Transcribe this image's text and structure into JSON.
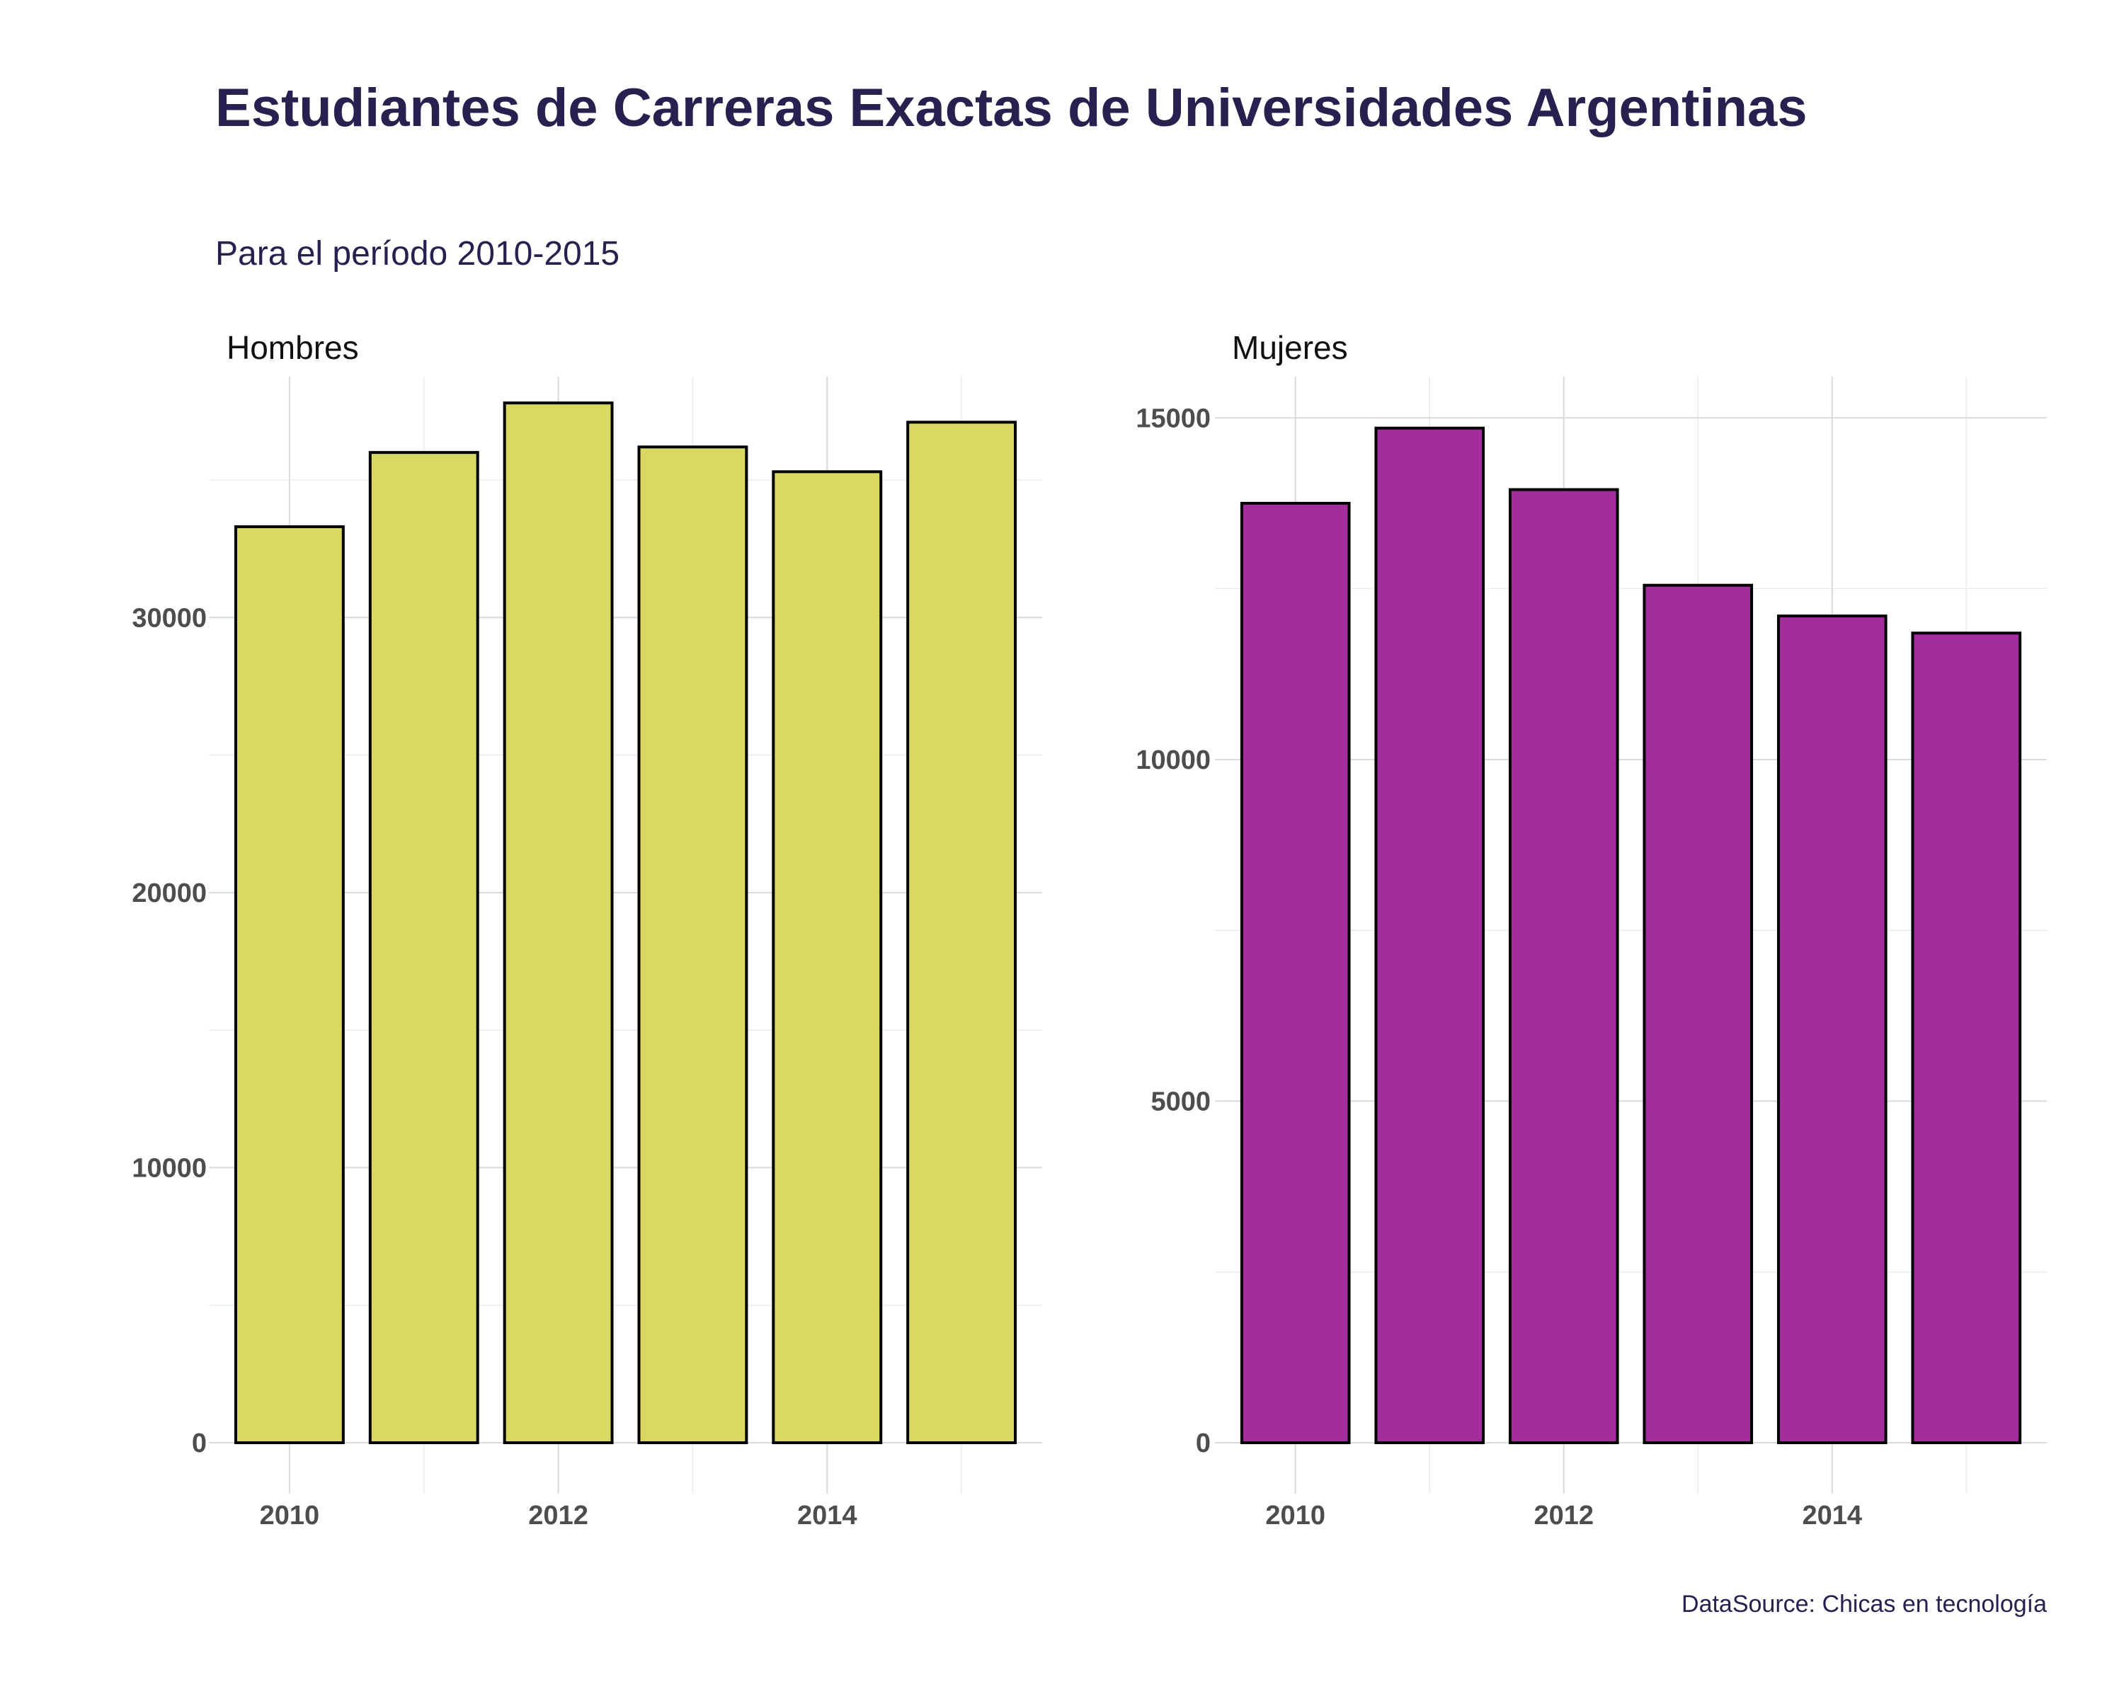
{
  "title": "Estudiantes de Carreras Exactas de Universidades Argentinas",
  "subtitle": "Para el período 2010-2015",
  "caption": "DataSource: Chicas en tecnología",
  "chart_data": [
    {
      "type": "bar",
      "facet": "Hombres",
      "color": "#d9d862",
      "x": [
        2010,
        2011,
        2012,
        2013,
        2014,
        2015
      ],
      "values": [
        33300,
        36000,
        37800,
        36200,
        35300,
        37100
      ],
      "xticks": [
        2010,
        2012,
        2014
      ],
      "xtick_labels": [
        "2010",
        "2012",
        "2014"
      ],
      "yticks": [
        0,
        10000,
        20000,
        30000
      ],
      "ytick_labels": [
        "0",
        "10000",
        "20000",
        "30000"
      ],
      "ylim": [
        0,
        38500
      ],
      "grid": true
    },
    {
      "type": "bar",
      "facet": "Mujeres",
      "color": "#a42d9e",
      "x": [
        2010,
        2011,
        2012,
        2013,
        2014,
        2015
      ],
      "values": [
        13750,
        14850,
        13950,
        12550,
        12100,
        11850
      ],
      "xticks": [
        2010,
        2012,
        2014
      ],
      "xtick_labels": [
        "2010",
        "2012",
        "2014"
      ],
      "yticks": [
        0,
        5000,
        10000,
        15000
      ],
      "ytick_labels": [
        "0",
        "5000",
        "10000",
        "15000"
      ],
      "ylim": [
        0,
        15500
      ],
      "grid": true
    }
  ]
}
